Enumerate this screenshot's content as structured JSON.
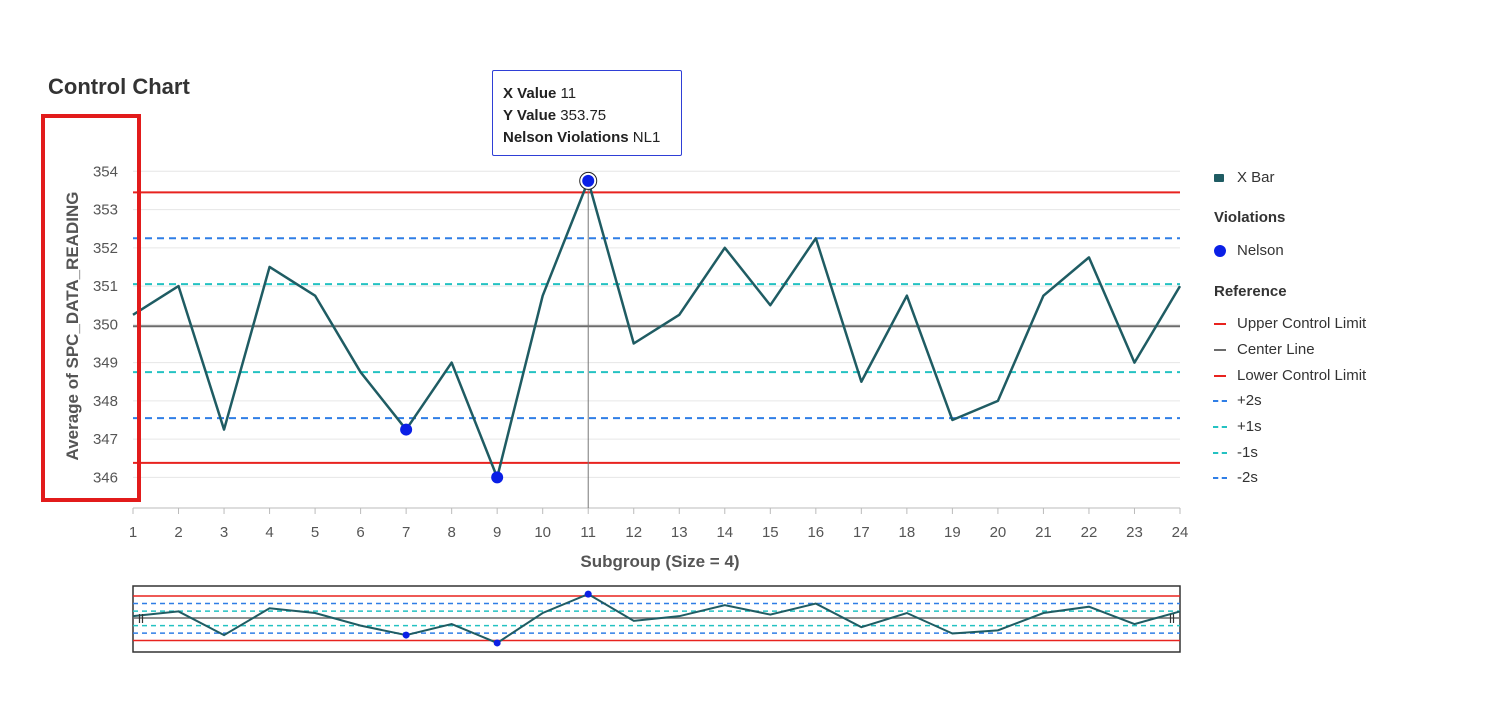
{
  "title": "Control Chart",
  "tooltip": {
    "x_label": "X Value",
    "x_value": "11",
    "y_label": "Y Value",
    "y_value": "353.75",
    "nv_label": "Nelson Violations",
    "nv_value": "NL1"
  },
  "legend": {
    "xbar": "X Bar",
    "violations_heading": "Violations",
    "nelson": "Nelson",
    "reference_heading": "Reference",
    "ucl": "Upper Control Limit",
    "cl": "Center Line",
    "lcl": "Lower Control Limit",
    "p2s": "+2s",
    "p1s": "+1s",
    "m1s": "-1s",
    "m2s": "-2s"
  },
  "colors": {
    "xbar": "#1f5c63",
    "violation": "#0a1fe6",
    "limit": "#e8231f",
    "center": "#6b6b6b",
    "two_sigma": "#2f7ee6",
    "one_sigma": "#24c2c2"
  },
  "chart_data": {
    "type": "line",
    "xlabel": "Subgroup (Size = 4)",
    "ylabel": "Average of SPC_DATA_READING",
    "x": [
      1,
      2,
      3,
      4,
      5,
      6,
      7,
      8,
      9,
      10,
      11,
      12,
      13,
      14,
      15,
      16,
      17,
      18,
      19,
      20,
      21,
      22,
      23,
      24
    ],
    "ylim": [
      345.2,
      354.4
    ],
    "yticks": [
      346,
      347,
      348,
      349,
      350,
      351,
      352,
      353,
      354
    ],
    "series": [
      {
        "name": "X Bar",
        "values": [
          350.25,
          351.0,
          347.25,
          351.5,
          350.75,
          348.75,
          347.25,
          349.0,
          346.0,
          350.75,
          353.75,
          349.5,
          350.25,
          352.0,
          350.5,
          352.25,
          348.5,
          350.75,
          347.5,
          348.0,
          350.75,
          351.75,
          349.0,
          351.0
        ]
      }
    ],
    "violations": {
      "name": "Nelson",
      "x": [
        7,
        9,
        11
      ],
      "y": [
        347.25,
        346.0,
        353.75
      ]
    },
    "reference_lines": [
      {
        "name": "Upper Control Limit",
        "value": 353.45,
        "style": "solid"
      },
      {
        "name": "Center Line",
        "value": 349.95,
        "style": "solid"
      },
      {
        "name": "Lower Control Limit",
        "value": 346.38,
        "style": "solid"
      },
      {
        "name": "+2s",
        "value": 352.25,
        "style": "dashed"
      },
      {
        "name": "+1s",
        "value": 351.05,
        "style": "dashed"
      },
      {
        "name": "-1s",
        "value": 348.75,
        "style": "dashed"
      },
      {
        "name": "-2s",
        "value": 347.55,
        "style": "dashed"
      }
    ],
    "highlighted_point": {
      "x": 11,
      "y": 353.75
    },
    "grid": true,
    "legend_position": "right"
  }
}
